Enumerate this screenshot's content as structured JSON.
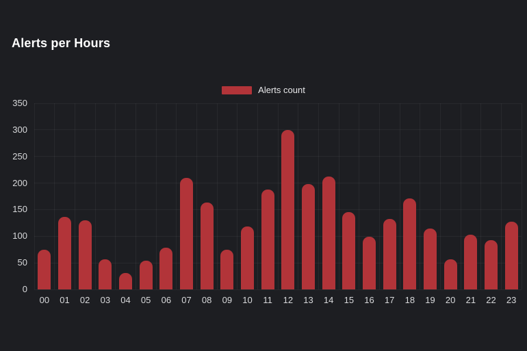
{
  "panel": {
    "title": "Alerts per Hours"
  },
  "legend": {
    "label": "Alerts count",
    "swatch_color": "#b23439"
  },
  "chart_data": {
    "type": "bar",
    "title": "Alerts per Hours",
    "categories": [
      "00",
      "01",
      "02",
      "03",
      "04",
      "05",
      "06",
      "07",
      "08",
      "09",
      "10",
      "11",
      "12",
      "13",
      "14",
      "15",
      "16",
      "17",
      "18",
      "19",
      "20",
      "21",
      "22",
      "23"
    ],
    "series": [
      {
        "name": "Alerts count",
        "color": "#b23439",
        "values": [
          74,
          136,
          130,
          57,
          31,
          54,
          78,
          210,
          164,
          75,
          118,
          188,
          300,
          198,
          212,
          145,
          99,
          133,
          171,
          114,
          57,
          103,
          93,
          127
        ]
      }
    ],
    "xlabel": "",
    "ylabel": "",
    "ylim": [
      0,
      350
    ],
    "yticks": [
      0,
      50,
      100,
      150,
      200,
      250,
      300,
      350
    ],
    "grid": true,
    "legend_position": "top-center"
  },
  "colors": {
    "background": "#1d1e22",
    "bar": "#b23439",
    "axis_text": "#d8d9db",
    "grid_line": "rgba(255,255,255,0.05)",
    "title_text": "#ffffff"
  }
}
